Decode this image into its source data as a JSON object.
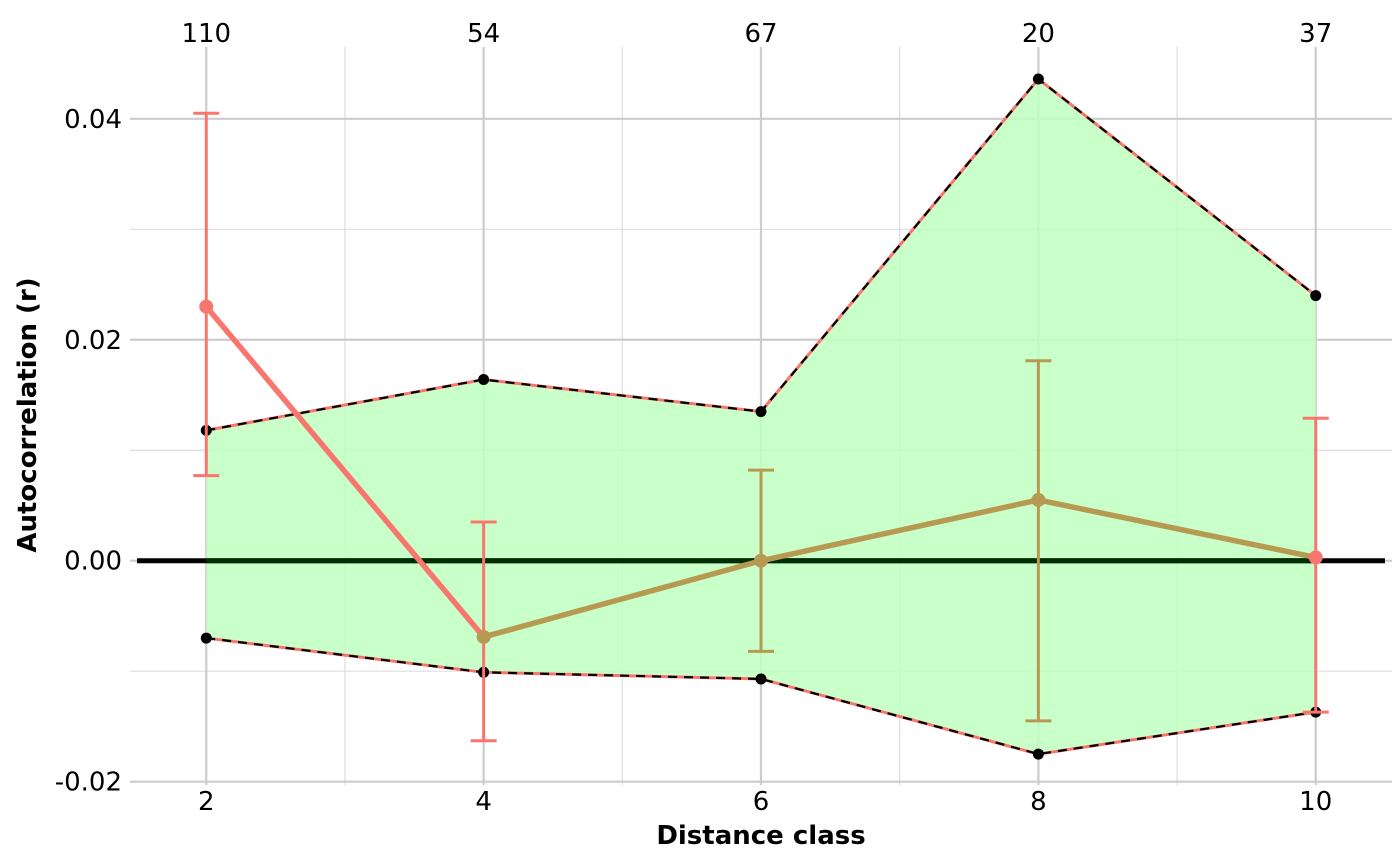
{
  "chart_data": {
    "type": "line",
    "title": "",
    "xlabel": "Distance class",
    "ylabel": "Autocorrelation (r)",
    "x": [
      2,
      4,
      6,
      8,
      10
    ],
    "xlim": [
      1.45,
      10.55
    ],
    "ylim": [
      -0.0203,
      0.0465
    ],
    "x_ticks": [
      2,
      4,
      6,
      8,
      10
    ],
    "x_tick_labels": [
      "2",
      "4",
      "6",
      "8",
      "10"
    ],
    "y_ticks": [
      -0.02,
      0,
      0.02,
      0.04
    ],
    "y_tick_labels": [
      "-0.02",
      "0.00",
      "0.02",
      "0.04"
    ],
    "top_labels": [
      "110",
      "54",
      "67",
      "20",
      "37"
    ],
    "grid": true,
    "legend": "none",
    "series": [
      {
        "kind": "envelope",
        "upper": [
          0.0118,
          0.0164,
          0.0135,
          0.0436,
          0.024
        ],
        "lower": [
          -0.007,
          -0.0101,
          -0.0107,
          -0.0175,
          -0.0137
        ],
        "fill": "#c0ffc0",
        "line_color": "#000000",
        "line_color_alt": "#f8766d"
      },
      {
        "kind": "observed",
        "values": [
          0.023,
          -0.0069,
          0.0,
          0.0055,
          0.0003
        ],
        "ci_low": [
          0.0077,
          -0.0163,
          -0.0082,
          -0.0145,
          -0.0137
        ],
        "ci_high": [
          0.0405,
          0.0035,
          0.0082,
          0.0181,
          0.0129
        ],
        "point_colors": [
          "#f8766d",
          "#b79a52",
          "#b79a52",
          "#b79a52",
          "#f8766d"
        ],
        "segment_colors": [
          "#f8766d",
          "#b79a52",
          "#b79a52",
          "#b79a52"
        ],
        "errorbar_colors": [
          "#f8766d",
          "#f8766d",
          "#b79a52",
          "#b79a52",
          "#f8766d"
        ]
      }
    ],
    "reference_line": {
      "y": 0,
      "color": "#000000",
      "overlay_color": "#003300"
    }
  }
}
